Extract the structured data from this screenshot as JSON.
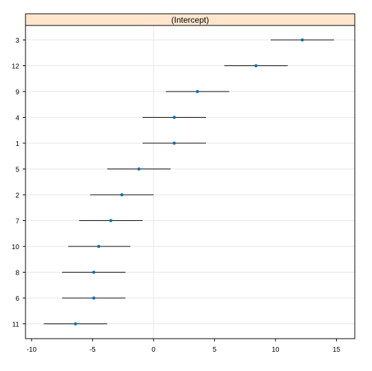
{
  "chart_data": {
    "type": "scatter",
    "title": "",
    "panel_title": "(Intercept)",
    "xlabel": "",
    "ylabel": "",
    "xlim": [
      -10.5,
      16.5
    ],
    "x_ticks": [
      -10,
      -5,
      0,
      5,
      10,
      15
    ],
    "grid": true,
    "reference_line_x": 0,
    "categories": [
      "3",
      "12",
      "9",
      "4",
      "1",
      "5",
      "2",
      "7",
      "10",
      "8",
      "6",
      "11"
    ],
    "series": [
      {
        "values": [
          12.2,
          8.4,
          3.6,
          1.7,
          1.7,
          -1.2,
          -2.6,
          -3.5,
          -4.5,
          -4.9,
          -4.9,
          -6.4
        ],
        "lower": [
          9.6,
          5.8,
          1.0,
          -0.9,
          -0.9,
          -3.8,
          -5.2,
          -6.1,
          -7.0,
          -7.5,
          -7.5,
          -9.0
        ],
        "upper": [
          14.8,
          11.0,
          6.2,
          4.3,
          4.3,
          1.4,
          0.0,
          -0.9,
          -1.9,
          -2.3,
          -2.3,
          -3.8
        ]
      }
    ],
    "colors": {
      "point": "#0072b2",
      "interval": "#000000",
      "strip_background": "#ffe5cc",
      "grid": "#e6e6e6",
      "reference_line": "#e6e6e6"
    }
  }
}
